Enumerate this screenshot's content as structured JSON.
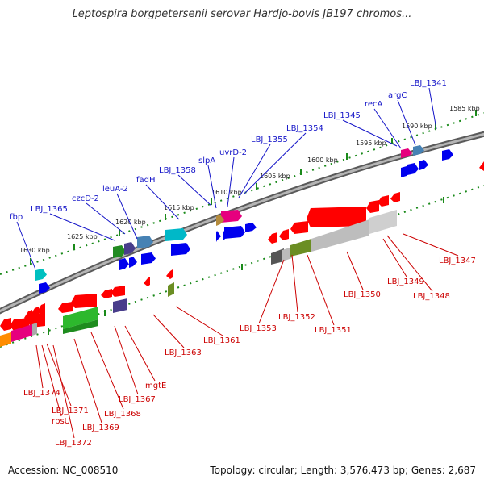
{
  "title": "Leptospira borgpetersenii serovar Hardjo-bovis JB197 chromos...",
  "footer": {
    "accession": "Accession: NC_008510",
    "summary": "Topology: circular; Length: 3,576,473 bp; Genes: 2,687"
  },
  "colors": {
    "upper_label": "#1515c8",
    "lower_label": "#cc0000",
    "backbone": "#808080",
    "tick": "#1a8a1a"
  },
  "ruler_labels": [
    "1585 kbp",
    "1590 kbp",
    "1595 kbp",
    "1600 kbp",
    "1605 kbp",
    "1610 kbp",
    "1615 kbp",
    "1620 kbp",
    "1625 kbp",
    "1630 kbp"
  ],
  "upper_genes": [
    "LBJ_1341",
    "argC",
    "recA",
    "LBJ_1345",
    "LBJ_1354",
    "LBJ_1355",
    "uvrD-2",
    "slpA",
    "LBJ_1358",
    "fadH",
    "leuA-2",
    "czcD-2",
    "LBJ_1365",
    "fbp"
  ],
  "lower_genes": [
    "LBJ_1347",
    "LBJ_1348",
    "LBJ_1349",
    "LBJ_1350",
    "LBJ_1351",
    "LBJ_1352",
    "LBJ_1353",
    "LBJ_1361",
    "LBJ_1363",
    "mgtE",
    "LBJ_1367",
    "LBJ_1368",
    "LBJ_1369",
    "LBJ_1371",
    "rpsU",
    "LBJ_1372",
    "LBJ_1374"
  ]
}
